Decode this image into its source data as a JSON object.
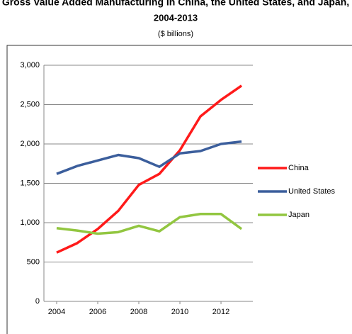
{
  "chart_data": {
    "type": "line",
    "title": "Gross Value Added Manufacturing in China, the United States, and Japan,",
    "subtitle": "2004-2013",
    "unit_label": "($ billions)",
    "x": [
      2004,
      2005,
      2006,
      2007,
      2008,
      2009,
      2010,
      2011,
      2012,
      2013
    ],
    "series": [
      {
        "name": "China",
        "color": "#ff1a1a",
        "values": [
          620,
          740,
          920,
          1150,
          1480,
          1620,
          1920,
          2350,
          2560,
          2740
        ]
      },
      {
        "name": "United States",
        "color": "#3b5e9c",
        "values": [
          1620,
          1720,
          1790,
          1860,
          1820,
          1710,
          1880,
          1910,
          2000,
          2030
        ]
      },
      {
        "name": "Japan",
        "color": "#92c640",
        "values": [
          930,
          900,
          860,
          880,
          960,
          890,
          1070,
          1110,
          1110,
          920
        ]
      }
    ],
    "xlim": [
      2003.38,
      2013.55
    ],
    "xticks": [
      2004,
      2006,
      2008,
      2010,
      2012
    ],
    "ylim": [
      0,
      3000
    ],
    "yticks": [
      0,
      500,
      {
        "value": 1000,
        "label": "1,000"
      },
      {
        "value": 1500,
        "label": "1,500"
      },
      {
        "value": 2000,
        "label": "2,000"
      },
      {
        "value": 2500,
        "label": "2,500"
      },
      {
        "value": 3000,
        "label": "3,000"
      }
    ],
    "grid": true,
    "legend": "right"
  }
}
